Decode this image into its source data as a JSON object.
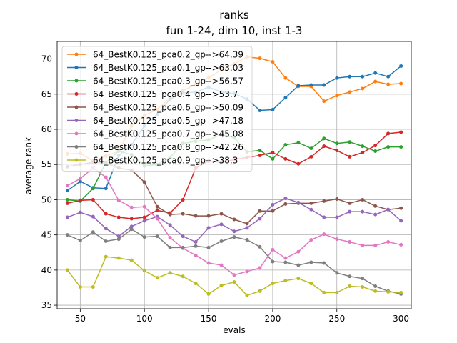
{
  "chart_data": {
    "type": "line",
    "title": "ranks",
    "subtitle": "fun 1-24, dim 10, inst 1-3",
    "xlabel": "evals",
    "ylabel": "average rank",
    "xlim": [
      32,
      308
    ],
    "ylim": [
      34.5,
      72.5
    ],
    "xticks": [
      50,
      100,
      150,
      200,
      250,
      300
    ],
    "yticks": [
      35,
      40,
      45,
      50,
      55,
      60,
      65,
      70
    ],
    "grid": true,
    "legend_position": "top-left",
    "x": [
      40,
      50,
      60,
      70,
      80,
      90,
      100,
      110,
      120,
      130,
      140,
      150,
      160,
      170,
      180,
      190,
      200,
      210,
      220,
      230,
      240,
      250,
      260,
      270,
      280,
      290,
      300
    ],
    "series": [
      {
        "name": "64_BestK0.125_pca0.2_gp-->64.39",
        "color": "#ff7f0e",
        "values": [
          56.5,
          56.6,
          55.5,
          56.2,
          56.9,
          60.5,
          62.0,
          62.8,
          64.5,
          65.5,
          66.4,
          67.3,
          68.5,
          69.3,
          70.3,
          70.1,
          69.6,
          67.3,
          66.1,
          66.1,
          64.0,
          64.8,
          65.3,
          65.8,
          66.8,
          66.4,
          66.5
        ]
      },
      {
        "name": "64_BestK0.125_pca0.1_gp-->63.03",
        "color": "#1f77b4",
        "values": [
          51.3,
          52.6,
          51.7,
          51.6,
          56.3,
          57.8,
          60.5,
          62.1,
          64.3,
          65.2,
          65.3,
          66.0,
          65.3,
          65.1,
          64.3,
          62.7,
          62.8,
          64.5,
          66.2,
          66.3,
          66.3,
          67.3,
          67.5,
          67.5,
          68.0,
          67.5,
          69.0
        ]
      },
      {
        "name": "64_BestK0.125_pca0.3_gp-->56.57",
        "color": "#2ca02c",
        "values": [
          50.0,
          49.8,
          51.6,
          55.3,
          56.9,
          56.4,
          54.8,
          55.0,
          56.0,
          58.0,
          58.3,
          58.5,
          59.3,
          58.8,
          56.8,
          57.0,
          55.8,
          57.8,
          58.1,
          57.3,
          58.7,
          58.0,
          58.2,
          57.6,
          56.9,
          57.5,
          57.5
        ]
      },
      {
        "name": "64_BestK0.125_pca0.4_gp-->53.7",
        "color": "#d62728",
        "values": [
          49.5,
          49.9,
          50.0,
          48.0,
          47.5,
          47.3,
          47.5,
          48.5,
          48.1,
          50.0,
          54.5,
          55.5,
          55.3,
          55.7,
          56.0,
          56.3,
          56.7,
          55.8,
          55.1,
          56.1,
          57.6,
          57.0,
          56.1,
          56.7,
          57.7,
          59.4,
          59.6
        ]
      },
      {
        "name": "64_BestK0.125_pca0.6_gp-->50.09",
        "color": "#8c564b",
        "values": [
          54.7,
          55.0,
          55.3,
          55.2,
          54.5,
          54.2,
          52.5,
          49.0,
          47.9,
          48.0,
          47.7,
          47.7,
          48.0,
          47.2,
          46.6,
          48.4,
          48.4,
          49.4,
          49.5,
          49.5,
          49.8,
          50.1,
          49.5,
          50.0,
          49.1,
          48.6,
          48.8
        ]
      },
      {
        "name": "64_BestK0.125_pca0.5_gp-->47.18",
        "color": "#9467bd",
        "values": [
          47.5,
          48.2,
          47.6,
          45.9,
          44.8,
          46.2,
          47.0,
          47.6,
          46.4,
          44.8,
          44.0,
          46.0,
          46.5,
          45.5,
          46.0,
          47.3,
          49.3,
          50.2,
          49.6,
          48.6,
          47.5,
          47.5,
          48.3,
          48.3,
          47.9,
          48.6,
          47.0
        ]
      },
      {
        "name": "64_BestK0.125_pca0.7_gp-->45.08",
        "color": "#e377c2",
        "values": [
          52.0,
          53.0,
          54.5,
          53.2,
          49.9,
          48.9,
          49.0,
          47.3,
          44.6,
          43.1,
          42.1,
          41.0,
          40.7,
          39.3,
          39.8,
          40.3,
          42.9,
          41.7,
          42.6,
          44.3,
          45.1,
          44.4,
          44.0,
          43.5,
          43.5,
          44.0,
          43.6
        ]
      },
      {
        "name": "64_BestK0.125_pca0.8_gp-->42.26",
        "color": "#7f7f7f",
        "values": [
          45.0,
          44.2,
          45.4,
          44.1,
          44.4,
          45.8,
          44.7,
          44.8,
          43.2,
          43.2,
          43.4,
          43.2,
          44.1,
          44.7,
          44.3,
          43.3,
          41.2,
          41.1,
          40.7,
          41.1,
          41.0,
          39.6,
          39.1,
          38.8,
          37.7,
          37.0,
          36.6
        ]
      },
      {
        "name": "64_BestK0.125_pca0.9_gp-->38.3",
        "color": "#bcbd22",
        "values": [
          40.0,
          37.6,
          37.6,
          41.9,
          41.7,
          41.4,
          39.9,
          38.9,
          39.6,
          39.1,
          38.1,
          36.6,
          37.8,
          38.3,
          36.4,
          37.0,
          38.1,
          38.5,
          38.8,
          38.1,
          36.8,
          36.8,
          37.7,
          37.6,
          37.0,
          36.9,
          36.8
        ]
      }
    ]
  }
}
